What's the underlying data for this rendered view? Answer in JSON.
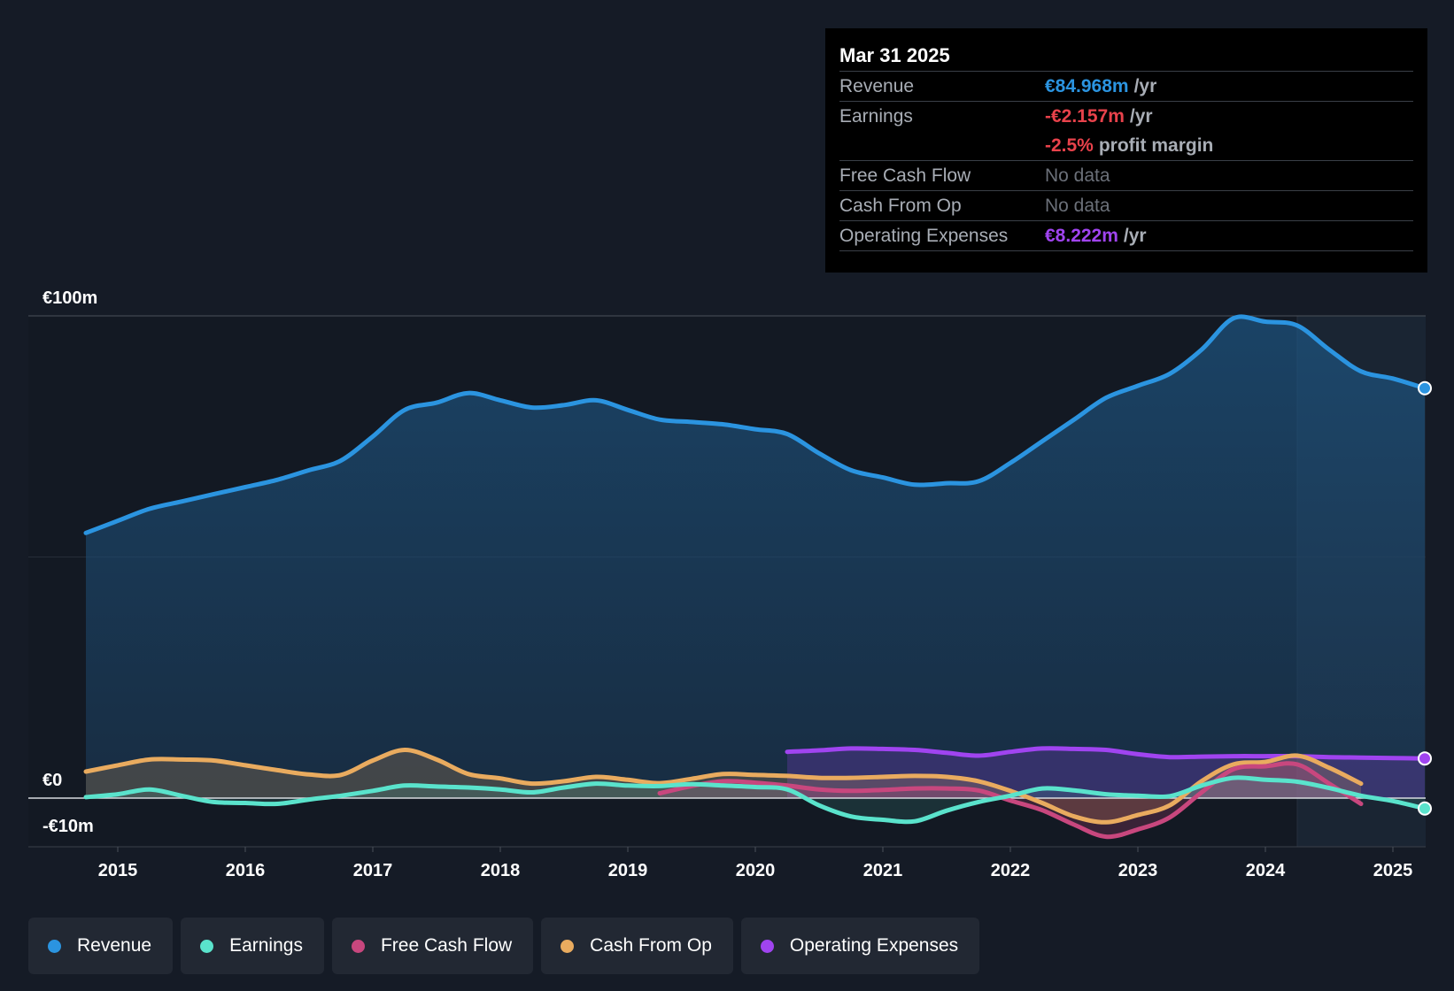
{
  "tooltip": {
    "date": "Mar 31 2025",
    "rows": {
      "revenue": {
        "label": "Revenue",
        "value": "€84.968m",
        "unit": "/yr"
      },
      "earnings": {
        "label": "Earnings",
        "value": "-€2.157m",
        "unit": "/yr"
      },
      "margin": {
        "value": "-2.5%",
        "unit": "profit margin"
      },
      "fcf": {
        "label": "Free Cash Flow",
        "value": "No data"
      },
      "cfo": {
        "label": "Cash From Op",
        "value": "No data"
      },
      "opex": {
        "label": "Operating Expenses",
        "value": "€8.222m",
        "unit": "/yr"
      }
    }
  },
  "legend": [
    {
      "label": "Revenue",
      "color": "#2b94e0"
    },
    {
      "label": "Earnings",
      "color": "#5ae3cc"
    },
    {
      "label": "Free Cash Flow",
      "color": "#c8477e"
    },
    {
      "label": "Cash From Op",
      "color": "#e9ab5f"
    },
    {
      "label": "Operating Expenses",
      "color": "#a044f0"
    }
  ],
  "chart_data": {
    "type": "area",
    "title": "",
    "xlabel": "",
    "ylabel": "",
    "ylim": [
      -10,
      100
    ],
    "y_tick_labels": [
      "€100m",
      "€0",
      "-€10m"
    ],
    "x_tick_labels": [
      "2015",
      "2016",
      "2017",
      "2018",
      "2019",
      "2020",
      "2021",
      "2022",
      "2023",
      "2024",
      "2025"
    ],
    "highlight_start": 2024.25,
    "series": [
      {
        "name": "Revenue",
        "color": "#2b94e0",
        "x": [
          2014.75,
          2015.0,
          2015.25,
          2015.5,
          2015.75,
          2016.0,
          2016.25,
          2016.5,
          2016.75,
          2017.0,
          2017.25,
          2017.5,
          2017.75,
          2018.0,
          2018.25,
          2018.5,
          2018.75,
          2019.0,
          2019.25,
          2019.5,
          2019.75,
          2020.0,
          2020.25,
          2020.5,
          2020.75,
          2021.0,
          2021.25,
          2021.5,
          2021.75,
          2022.0,
          2022.25,
          2022.5,
          2022.75,
          2023.0,
          2023.25,
          2023.5,
          2023.75,
          2024.0,
          2024.25,
          2024.5,
          2024.75,
          2025.0,
          2025.25
        ],
        "values": [
          55,
          57.5,
          60,
          61.5,
          63,
          64.5,
          66,
          68,
          70,
          75,
          80.5,
          82,
          84,
          82.5,
          81,
          81.5,
          82.5,
          80.5,
          78.5,
          78,
          77.5,
          76.5,
          75.5,
          71.5,
          68,
          66.5,
          65,
          65.3,
          65.7,
          69.5,
          74,
          78.5,
          83,
          85.5,
          88,
          93,
          99.5,
          98.8,
          98,
          93,
          88.5,
          87,
          85
        ]
      },
      {
        "name": "Earnings",
        "color": "#5ae3cc",
        "x": [
          2014.75,
          2015.0,
          2015.25,
          2015.5,
          2015.75,
          2016.0,
          2016.25,
          2016.5,
          2016.75,
          2017.0,
          2017.25,
          2017.5,
          2017.75,
          2018.0,
          2018.25,
          2018.5,
          2018.75,
          2019.0,
          2019.25,
          2019.5,
          2019.75,
          2020.0,
          2020.25,
          2020.5,
          2020.75,
          2021.0,
          2021.25,
          2021.5,
          2021.75,
          2022.0,
          2022.25,
          2022.5,
          2022.75,
          2023.0,
          2023.25,
          2023.5,
          2023.75,
          2024.0,
          2024.25,
          2024.5,
          2024.75,
          2025.0,
          2025.25
        ],
        "values": [
          0.2,
          0.8,
          1.8,
          0.5,
          -0.8,
          -1,
          -1.2,
          -0.3,
          0.5,
          1.5,
          2.6,
          2.4,
          2.2,
          1.8,
          1.2,
          2.2,
          3,
          2.6,
          2.5,
          2.9,
          2.6,
          2.3,
          1.8,
          -1.5,
          -3.8,
          -4.5,
          -4.8,
          -2.6,
          -0.8,
          0.5,
          2,
          1.6,
          0.8,
          0.5,
          0.4,
          2.6,
          4.2,
          3.8,
          3.4,
          2.1,
          0.5,
          -0.6,
          -2.157
        ]
      },
      {
        "name": "Free Cash Flow",
        "color": "#c8477e",
        "x": [
          2019.25,
          2019.5,
          2019.75,
          2020.0,
          2020.25,
          2020.5,
          2020.75,
          2021.0,
          2021.25,
          2021.5,
          2021.75,
          2022.0,
          2022.25,
          2022.5,
          2022.75,
          2023.0,
          2023.25,
          2023.5,
          2023.75,
          2024.0,
          2024.25,
          2024.5,
          2024.75
        ],
        "values": [
          1,
          2.5,
          3.5,
          3.2,
          2.6,
          1.8,
          1.5,
          1.7,
          2,
          2,
          1.6,
          -0.5,
          -2.5,
          -5.5,
          -8,
          -6.5,
          -4,
          1.2,
          6,
          6.6,
          7,
          3,
          -1.2
        ]
      },
      {
        "name": "Cash From Op",
        "color": "#e9ab5f",
        "x": [
          2014.75,
          2015.0,
          2015.25,
          2015.5,
          2015.75,
          2016.0,
          2016.25,
          2016.5,
          2016.75,
          2017.0,
          2017.25,
          2017.5,
          2017.75,
          2018.0,
          2018.25,
          2018.5,
          2018.75,
          2019.0,
          2019.25,
          2019.5,
          2019.75,
          2020.0,
          2020.25,
          2020.5,
          2020.75,
          2021.0,
          2021.25,
          2021.5,
          2021.75,
          2022.0,
          2022.25,
          2022.5,
          2022.75,
          2023.0,
          2023.25,
          2023.5,
          2023.75,
          2024.0,
          2024.25,
          2024.5,
          2024.75
        ],
        "values": [
          5.5,
          6.8,
          8,
          8,
          7.8,
          6.8,
          5.8,
          4.9,
          4.8,
          7.8,
          10,
          8,
          5,
          4.1,
          3,
          3.5,
          4.4,
          3.8,
          3.1,
          4,
          5,
          4.8,
          4.6,
          4.2,
          4.2,
          4.4,
          4.6,
          4.4,
          3.5,
          1.5,
          -1,
          -3.8,
          -5,
          -3.5,
          -1.5,
          3.5,
          7,
          7.5,
          8.8,
          6.3,
          3
        ]
      },
      {
        "name": "Operating Expenses",
        "color": "#a044f0",
        "x": [
          2020.25,
          2020.5,
          2020.75,
          2021.0,
          2021.25,
          2021.5,
          2021.75,
          2022.0,
          2022.25,
          2022.5,
          2022.75,
          2023.0,
          2023.25,
          2023.5,
          2023.75,
          2024.0,
          2024.25,
          2024.5,
          2024.75,
          2025.0,
          2025.25
        ],
        "values": [
          9.6,
          9.9,
          10.3,
          10.2,
          10,
          9.4,
          8.8,
          9.6,
          10.3,
          10.2,
          10,
          9.1,
          8.5,
          8.6,
          8.7,
          8.7,
          8.7,
          8.5,
          8.4,
          8.3,
          8.222
        ]
      }
    ]
  }
}
